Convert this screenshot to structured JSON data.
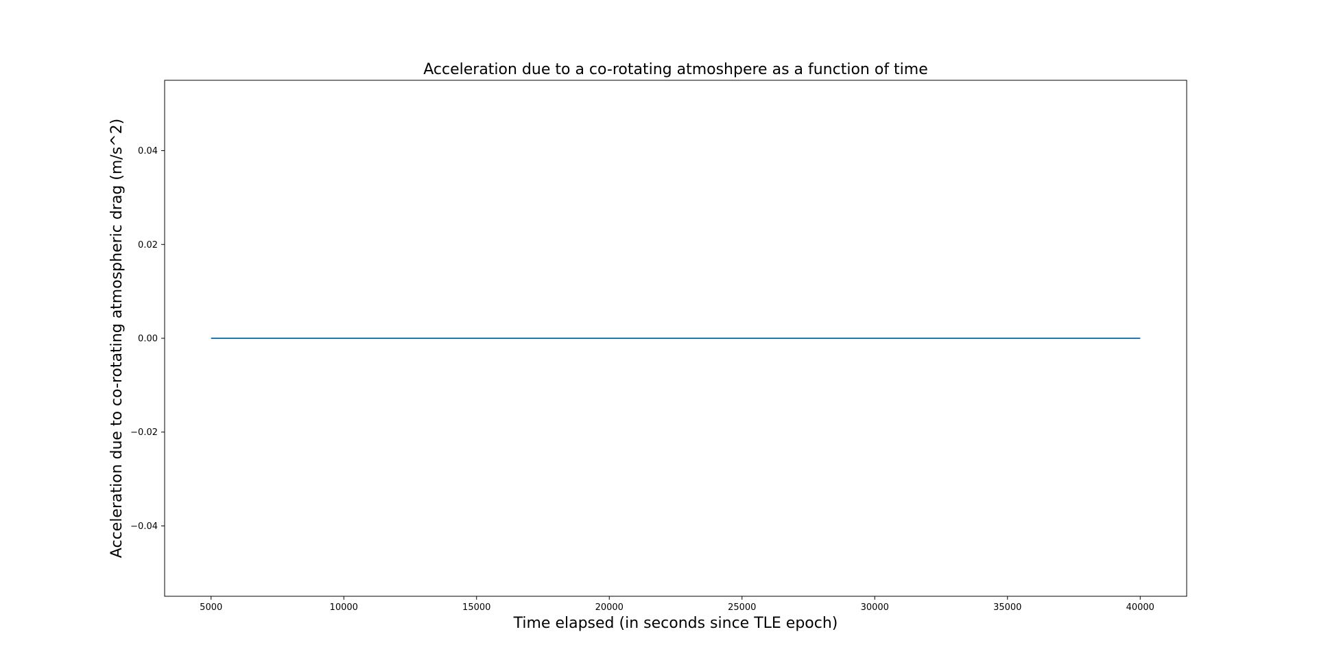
{
  "chart_data": {
    "type": "line",
    "title": "Acceleration due to a co-rotating atmoshpere as a function of time",
    "xlabel": "Time elapsed (in seconds since TLE epoch)",
    "ylabel": "Acceleration due to co-rotating atmospheric drag (m/s^2)",
    "xlim": [
      3250,
      41750
    ],
    "ylim": [
      -0.055,
      0.055
    ],
    "xticks": [
      5000,
      10000,
      15000,
      20000,
      25000,
      30000,
      35000,
      40000
    ],
    "xtick_labels": [
      "5000",
      "10000",
      "15000",
      "20000",
      "25000",
      "30000",
      "35000",
      "40000"
    ],
    "yticks": [
      -0.04,
      -0.02,
      0.0,
      0.02,
      0.04
    ],
    "ytick_labels": [
      "−0.04",
      "−0.02",
      "0.00",
      "0.02",
      "0.04"
    ],
    "grid": false,
    "legend": "none",
    "series": [
      {
        "color": "#1f77b4",
        "x": [
          5000,
          40000
        ],
        "y": [
          0.0,
          0.0
        ]
      }
    ]
  }
}
